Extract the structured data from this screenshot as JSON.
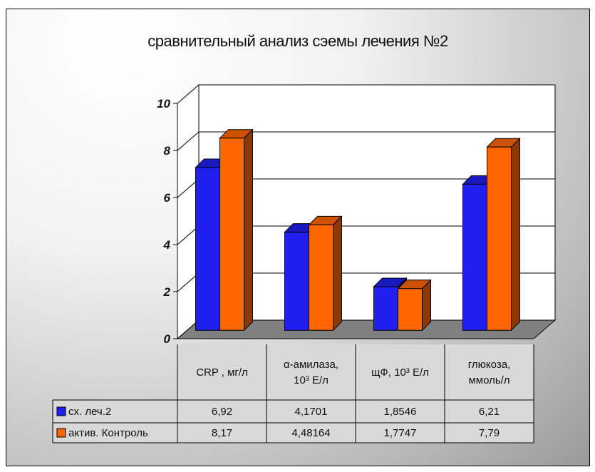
{
  "chart_data": {
    "type": "bar",
    "title": "сравнительный анализ сэемы лечения №2",
    "categories": [
      [
        "CRP , мг/л"
      ],
      [
        "α-амилаза,",
        "10³ Е/л"
      ],
      [
        "щФ, 10³ Е/л"
      ],
      [
        "глюкоза,",
        "ммоль/л"
      ]
    ],
    "y_ticks": [
      "0",
      "2",
      "4",
      "6",
      "8",
      "10"
    ],
    "ylim": [
      0,
      10
    ],
    "grid": true,
    "legend": "data-table",
    "series": [
      {
        "name": "сх. леч.2",
        "color": "#1f1ff0",
        "values": [
          6.92,
          4.1701,
          1.8546,
          6.21
        ],
        "labels": [
          "6,92",
          "4,1701",
          "1,8546",
          "6,21"
        ]
      },
      {
        "name": "актив. Контроль",
        "color": "#ff6600",
        "values": [
          8.17,
          4.48164,
          1.7747,
          7.79
        ],
        "labels": [
          "8,17",
          "4,48164",
          "1,7747",
          "7,79"
        ]
      }
    ]
  }
}
